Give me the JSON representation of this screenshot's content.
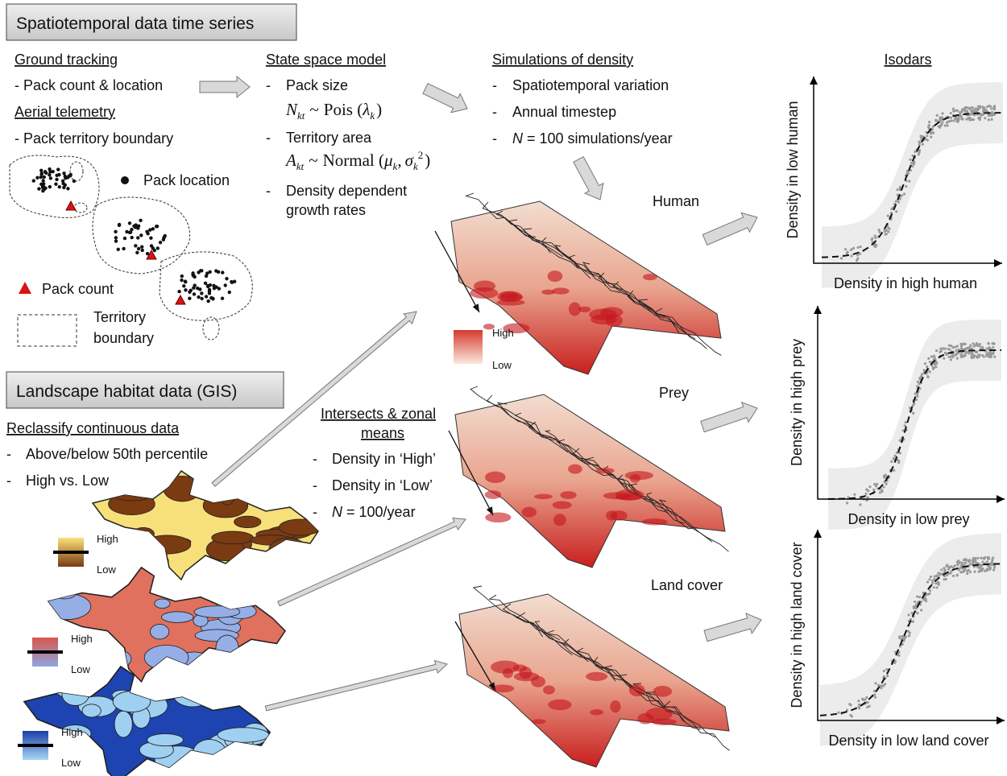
{
  "header_time_series": "Spatiotemporal data time series",
  "ground_tracking": {
    "title": "Ground tracking",
    "item": "- Pack count & location"
  },
  "aerial_telemetry": {
    "title": "Aerial telemetry",
    "item": "- Pack territory boundary"
  },
  "territory_legend": {
    "pack_location": "Pack location",
    "pack_count": "Pack count",
    "territory_line1": "Territory",
    "territory_line2": "boundary"
  },
  "bullet": "-",
  "state_space_model": {
    "title": "State space model",
    "pack_size": "Pack size",
    "pack_size_formula": {
      "var": "N",
      "var_sub": "kt",
      "op": "~",
      "dist": "Pois (",
      "param": "λ",
      "param_sub": "k",
      "close": ")"
    },
    "territory_area": "Territory area",
    "territory_formula": {
      "var": "A",
      "var_sub": "kt",
      "op": "~",
      "dist": "Normal (",
      "arg1": "μ",
      "arg1_sub": "k",
      "sep": ",",
      "arg2": "σ",
      "arg2_sub": "k",
      "arg2_sup": "2",
      "close": ")"
    },
    "density_line1": "Density dependent",
    "density_line2": "growth rates"
  },
  "simulations": {
    "title": "Simulations of density",
    "items": [
      "Spatiotemporal variation",
      "Annual timestep"
    ],
    "n_var": "N",
    "n_text": " = 100 simulations/year"
  },
  "surfaces": {
    "labels": [
      "Human",
      "Prey",
      "Land cover"
    ],
    "legend_high": "High",
    "legend_low": "Low"
  },
  "isodars": {
    "title": "Isodars",
    "plots": [
      {
        "ylabel": "Density in low human",
        "xlabel": "Density in high human"
      },
      {
        "ylabel": "Density in high prey",
        "xlabel": "Density in low prey"
      },
      {
        "ylabel": "Density in high land cover",
        "xlabel": "Density in low land cover"
      }
    ]
  },
  "header_landscape": "Landscape habitat data (GIS)",
  "reclassify": {
    "title": "Reclassify continuous data",
    "items": [
      "Above/below 50th percentile",
      "High vs. Low"
    ]
  },
  "map_legends": [
    {
      "high": "High",
      "low": "Low"
    },
    {
      "high": "High",
      "low": "Low"
    },
    {
      "high": "High",
      "low": "Low"
    }
  ],
  "intersects": {
    "title_line1": "Intersects & zonal",
    "title_line2": "means",
    "items": [
      "Density in ‘High’",
      "Density in ‘Low’"
    ],
    "n_var": "N",
    "n_text": " = 100/year"
  }
}
